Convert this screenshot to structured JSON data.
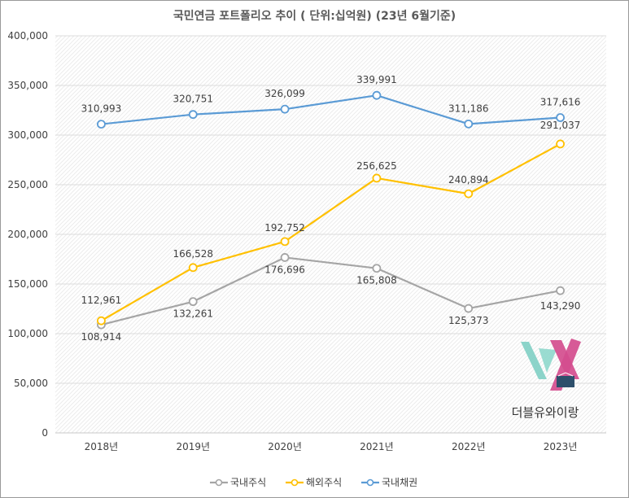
{
  "chart_data": {
    "type": "line",
    "title": "국민연금 포트폴리오 추이 ( 단위:십억원) (23년 6월기준)",
    "categories": [
      "2018년",
      "2019년",
      "2020년",
      "2021년",
      "2022년",
      "2023년"
    ],
    "series": [
      {
        "name": "국내주식",
        "color": "#a5a5a5",
        "values": [
          108914,
          132261,
          176696,
          165808,
          125373,
          143290
        ],
        "labels": [
          "108,914",
          "132,261",
          "176,696",
          "165,808",
          "125,373",
          "143,290"
        ]
      },
      {
        "name": "해외주식",
        "color": "#ffc000",
        "values": [
          112961,
          166528,
          192752,
          256625,
          240894,
          291037
        ],
        "labels": [
          "112,961",
          "166,528",
          "192,752",
          "256,625",
          "240,894",
          "291,037"
        ]
      },
      {
        "name": "국내채권",
        "color": "#5b9bd5",
        "values": [
          310993,
          320751,
          326099,
          339991,
          311186,
          317616
        ],
        "labels": [
          "310,993",
          "320,751",
          "326,099",
          "339,991",
          "311,186",
          "317,616"
        ]
      }
    ],
    "yticks": [
      "0",
      "50,000",
      "100,000",
      "150,000",
      "200,000",
      "250,000",
      "300,000",
      "350,000",
      "400,000"
    ],
    "ylim": [
      0,
      400000
    ],
    "grid": true,
    "legend": "bottom"
  },
  "watermark": {
    "text": "더블유와이랑",
    "colors": [
      "#7fcfc4",
      "#d44d8e"
    ]
  }
}
